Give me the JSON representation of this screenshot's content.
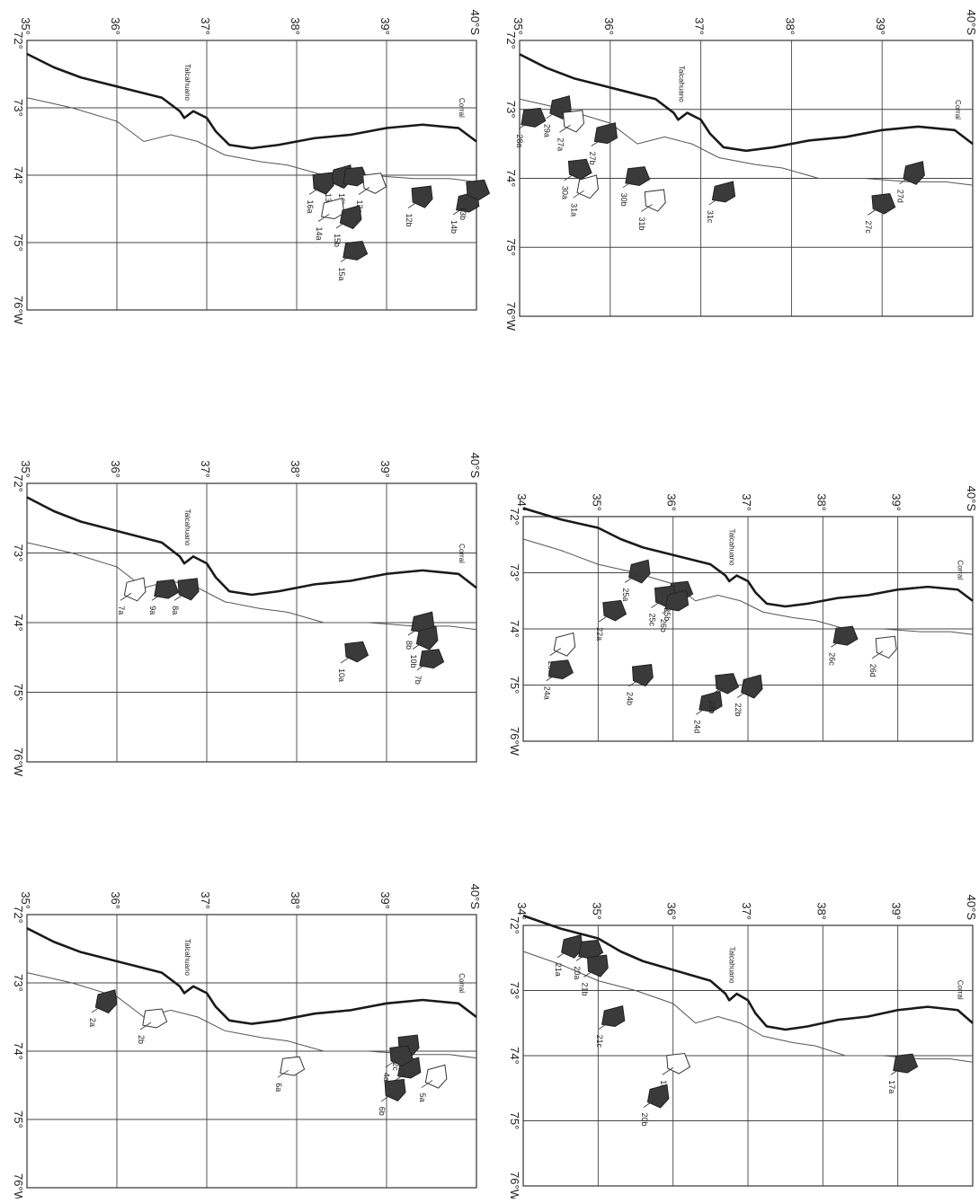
{
  "maps": [
    {
      "id": "map-bottom-left",
      "lon_labels": [
        "72°",
        "73°",
        "74°",
        "75°",
        "76°W"
      ],
      "lat_labels": [
        "35°",
        "36°",
        "37°",
        "38°",
        "39°",
        "40°S"
      ],
      "places": [
        "Talcahuano",
        "Corral"
      ],
      "zones": [
        {
          "label": "2a",
          "lon": 73.25,
          "lat": 35.88,
          "filled": true
        },
        {
          "label": "2b",
          "lon": 73.5,
          "lat": 36.42,
          "filled": false
        },
        {
          "label": "2c",
          "lon": 73.9,
          "lat": 39.25,
          "filled": true
        },
        {
          "label": "3a",
          "lon": 74.25,
          "lat": 39.25,
          "filled": true
        },
        {
          "label": "4a",
          "lon": 74.05,
          "lat": 39.15,
          "filled": true
        },
        {
          "label": "5a",
          "lon": 74.35,
          "lat": 39.55,
          "filled": false
        },
        {
          "label": "6a",
          "lon": 74.2,
          "lat": 37.95,
          "filled": false
        },
        {
          "label": "6b",
          "lon": 74.55,
          "lat": 39.1,
          "filled": true
        }
      ]
    },
    {
      "id": "map-middle-left",
      "lon_labels": [
        "72°",
        "73°",
        "74°",
        "75°",
        "76°W"
      ],
      "lat_labels": [
        "35°",
        "36°",
        "37°",
        "38°",
        "39°",
        "40°S"
      ],
      "places": [
        "Talcahuano",
        "Corral"
      ],
      "zones": [
        {
          "label": "7a",
          "lon": 73.5,
          "lat": 36.2,
          "filled": false
        },
        {
          "label": "9a",
          "lon": 73.5,
          "lat": 36.55,
          "filled": true
        },
        {
          "label": "8a",
          "lon": 73.5,
          "lat": 36.8,
          "filled": true
        },
        {
          "label": "8b",
          "lon": 74.0,
          "lat": 39.4,
          "filled": true
        },
        {
          "label": "10a",
          "lon": 74.4,
          "lat": 38.65,
          "filled": true
        },
        {
          "label": "10b",
          "lon": 74.2,
          "lat": 39.45,
          "filled": true
        },
        {
          "label": "7b",
          "lon": 74.5,
          "lat": 39.5,
          "filled": true
        }
      ]
    },
    {
      "id": "map-top-left",
      "lon_labels": [
        "72°",
        "73°",
        "74°",
        "75°",
        "76°W"
      ],
      "lat_labels": [
        "35°",
        "36°",
        "37°",
        "38°",
        "39°",
        "40°S"
      ],
      "places": [
        "Talcahuano",
        "Corral"
      ],
      "zones": [
        {
          "label": "13a",
          "lon": 74.0,
          "lat": 38.5,
          "filled": true
        },
        {
          "label": "16b",
          "lon": 74.0,
          "lat": 38.65,
          "filled": true
        },
        {
          "label": "16a",
          "lon": 74.1,
          "lat": 38.3,
          "filled": true
        },
        {
          "label": "14a",
          "lon": 74.5,
          "lat": 38.4,
          "filled": false
        },
        {
          "label": "12a",
          "lon": 74.1,
          "lat": 38.85,
          "filled": false
        },
        {
          "label": "15b",
          "lon": 74.6,
          "lat": 38.6,
          "filled": true
        },
        {
          "label": "15a",
          "lon": 75.1,
          "lat": 38.65,
          "filled": true
        },
        {
          "label": "12b",
          "lon": 74.3,
          "lat": 39.4,
          "filled": true
        },
        {
          "label": "14b",
          "lon": 74.4,
          "lat": 39.9,
          "filled": true
        },
        {
          "label": "13b",
          "lon": 74.2,
          "lat": 40.0,
          "filled": true
        }
      ]
    },
    {
      "id": "map-bottom-right",
      "lon_labels": [
        "72°",
        "73°",
        "74°",
        "75°",
        "76°W"
      ],
      "lat_labels": [
        "34°",
        "35°",
        "36°",
        "37°",
        "38°",
        "39°",
        "40°S"
      ],
      "places": [
        "Talcahuano",
        "Corral"
      ],
      "zones": [
        {
          "label": "21a",
          "lon": 72.3,
          "lat": 34.65,
          "filled": true
        },
        {
          "label": "20a",
          "lon": 72.35,
          "lat": 34.9,
          "filled": true
        },
        {
          "label": "21b",
          "lon": 72.6,
          "lat": 35.0,
          "filled": true
        },
        {
          "label": "21c",
          "lon": 73.4,
          "lat": 35.2,
          "filled": true
        },
        {
          "label": "18a",
          "lon": 74.1,
          "lat": 36.05,
          "filled": false
        },
        {
          "label": "20b",
          "lon": 74.6,
          "lat": 35.8,
          "filled": true
        },
        {
          "label": "17a",
          "lon": 74.1,
          "lat": 39.1,
          "filled": true
        }
      ]
    },
    {
      "id": "map-middle-right",
      "lon_labels": [
        "72°",
        "73°",
        "74°",
        "75°",
        "76°W"
      ],
      "lat_labels": [
        "34°",
        "35°",
        "36°",
        "37°",
        "38°",
        "39°",
        "40°S"
      ],
      "places": [
        "Talcahuano",
        "Corral"
      ],
      "zones": [
        {
          "label": "25a",
          "lon": 72.95,
          "lat": 35.55,
          "filled": true
        },
        {
          "label": "25b",
          "lon": 73.3,
          "lat": 36.1,
          "filled": true
        },
        {
          "label": "25c",
          "lon": 73.4,
          "lat": 35.9,
          "filled": true
        },
        {
          "label": "26b",
          "lon": 73.5,
          "lat": 36.05,
          "filled": true
        },
        {
          "label": "22a",
          "lon": 73.65,
          "lat": 35.2,
          "filled": true
        },
        {
          "label": "23a",
          "lon": 74.25,
          "lat": 34.55,
          "filled": false
        },
        {
          "label": "24a",
          "lon": 74.7,
          "lat": 34.5,
          "filled": true
        },
        {
          "label": "24b",
          "lon": 74.8,
          "lat": 35.6,
          "filled": true
        },
        {
          "label": "24d",
          "lon": 75.3,
          "lat": 36.5,
          "filled": true
        },
        {
          "label": "23b",
          "lon": 74.95,
          "lat": 36.7,
          "filled": true
        },
        {
          "label": "22b",
          "lon": 75.0,
          "lat": 37.05,
          "filled": true
        },
        {
          "label": "26c",
          "lon": 74.1,
          "lat": 38.3,
          "filled": true
        },
        {
          "label": "26d",
          "lon": 74.3,
          "lat": 38.85,
          "filled": false
        }
      ]
    },
    {
      "id": "map-top-right",
      "lon_labels": [
        "72°",
        "73°",
        "74°",
        "75°",
        "76°W"
      ],
      "lat_labels": [
        "35°",
        "36°",
        "37°",
        "38°",
        "39°",
        "40°S"
      ],
      "places": [
        "Talcahuano",
        "Corral"
      ],
      "zones": [
        {
          "label": "29a",
          "lon": 72.95,
          "lat": 35.45,
          "filled": true
        },
        {
          "label": "28a",
          "lon": 73.1,
          "lat": 35.15,
          "filled": true
        },
        {
          "label": "27a",
          "lon": 73.15,
          "lat": 35.6,
          "filled": false
        },
        {
          "label": "27b",
          "lon": 73.35,
          "lat": 35.95,
          "filled": true
        },
        {
          "label": "30a",
          "lon": 73.85,
          "lat": 35.65,
          "filled": true
        },
        {
          "label": "31a",
          "lon": 74.1,
          "lat": 35.75,
          "filled": false
        },
        {
          "label": "30b",
          "lon": 73.95,
          "lat": 36.3,
          "filled": true
        },
        {
          "label": "31b",
          "lon": 74.3,
          "lat": 36.5,
          "filled": false
        },
        {
          "label": "31c",
          "lon": 74.2,
          "lat": 37.25,
          "filled": true
        },
        {
          "label": "27c",
          "lon": 74.35,
          "lat": 39.0,
          "filled": true
        },
        {
          "label": "27d",
          "lon": 73.9,
          "lat": 39.35,
          "filled": true
        }
      ]
    }
  ]
}
